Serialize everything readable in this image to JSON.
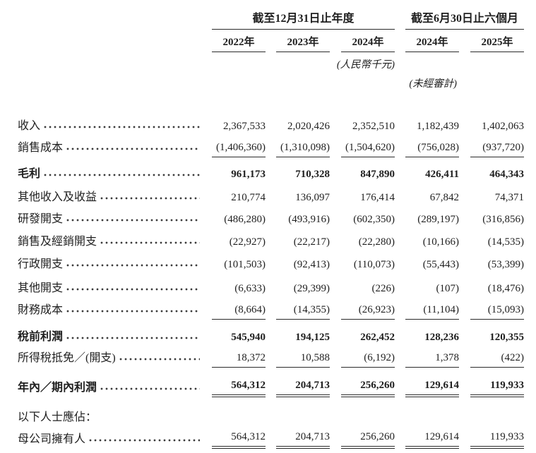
{
  "page": {
    "background_color": "#ffffff",
    "text_color": "#1f1f1f",
    "rule_color": "#2a2a2a"
  },
  "table": {
    "header": {
      "groups": [
        {
          "label": "截至12月31日止年度",
          "span": 3
        },
        {
          "label": "截至6月30日止六個月",
          "span": 2
        }
      ],
      "years": [
        "2022年",
        "2023年",
        "2024年",
        "2024年",
        "2025年"
      ],
      "unit_note": "(人民幣千元)",
      "unaudited_note": "(未經審計)"
    },
    "rows": [
      {
        "label": "收入",
        "leader": true,
        "bold": false,
        "underline": "none",
        "values": [
          "2,367,533",
          "2,020,426",
          "2,352,510",
          "1,182,439",
          "1,402,063"
        ]
      },
      {
        "label": "銷售成本",
        "leader": true,
        "bold": false,
        "underline": "single",
        "values": [
          "(1,406,360)",
          "(1,310,098)",
          "(1,504,620)",
          "(756,028)",
          "(937,720)"
        ]
      },
      {
        "label": "毛利",
        "leader": true,
        "bold": true,
        "underline": "none",
        "values": [
          "961,173",
          "710,328",
          "847,890",
          "426,411",
          "464,343"
        ]
      },
      {
        "label": "其他收入及收益",
        "leader": true,
        "bold": false,
        "underline": "none",
        "values": [
          "210,774",
          "136,097",
          "176,414",
          "67,842",
          "74,371"
        ]
      },
      {
        "label": "研發開支",
        "leader": true,
        "bold": false,
        "underline": "none",
        "values": [
          "(486,280)",
          "(493,916)",
          "(602,350)",
          "(289,197)",
          "(316,856)"
        ]
      },
      {
        "label": "銷售及經銷開支",
        "leader": true,
        "bold": false,
        "underline": "none",
        "values": [
          "(22,927)",
          "(22,217)",
          "(22,280)",
          "(10,166)",
          "(14,535)"
        ]
      },
      {
        "label": "行政開支",
        "leader": true,
        "bold": false,
        "underline": "none",
        "values": [
          "(101,503)",
          "(92,413)",
          "(110,073)",
          "(55,443)",
          "(53,399)"
        ]
      },
      {
        "label": "其他開支",
        "leader": true,
        "bold": false,
        "underline": "none",
        "values": [
          "(6,633)",
          "(29,399)",
          "(226)",
          "(107)",
          "(18,476)"
        ]
      },
      {
        "label": "財務成本",
        "leader": true,
        "bold": false,
        "underline": "single",
        "values": [
          "(8,664)",
          "(14,355)",
          "(26,923)",
          "(11,104)",
          "(15,093)"
        ]
      },
      {
        "label": "稅前利潤",
        "leader": true,
        "bold": true,
        "underline": "none",
        "values": [
          "545,940",
          "194,125",
          "262,452",
          "128,236",
          "120,355"
        ]
      },
      {
        "label": "所得稅抵免／(開支)",
        "leader": true,
        "bold": false,
        "underline": "single",
        "values": [
          "18,372",
          "10,588",
          "(6,192)",
          "1,378",
          "(422)"
        ]
      },
      {
        "label": "年內／期內利潤",
        "leader": true,
        "bold": true,
        "underline": "double",
        "values": [
          "564,312",
          "204,713",
          "256,260",
          "129,614",
          "119,933"
        ]
      },
      {
        "label": "以下人士應佔：",
        "leader": false,
        "bold": false,
        "underline": "none",
        "values": []
      },
      {
        "label": "母公司擁有人",
        "leader": true,
        "bold": false,
        "underline": "double",
        "values": [
          "564,312",
          "204,713",
          "256,260",
          "129,614",
          "119,933"
        ]
      }
    ]
  }
}
